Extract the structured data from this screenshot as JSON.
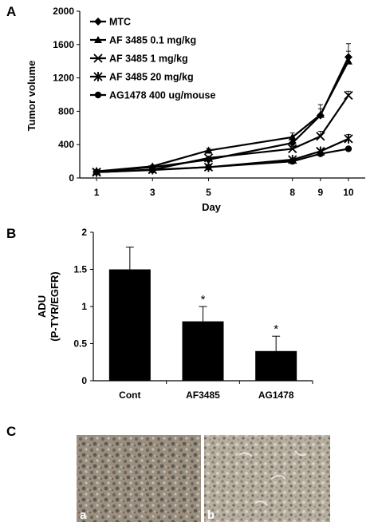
{
  "panels": {
    "a": {
      "letter": "A"
    },
    "b": {
      "letter": "B"
    },
    "c": {
      "letter": "C",
      "image_labels": [
        "a",
        "b"
      ]
    }
  },
  "chart_data": [
    {
      "id": "A",
      "type": "line",
      "xlabel": "Day",
      "ylabel": "Tumor volume",
      "x": [
        1,
        3,
        5,
        8,
        9,
        10
      ],
      "xlim": [
        0.4,
        10.6
      ],
      "ylim": [
        0,
        2000
      ],
      "yticks": [
        0,
        400,
        800,
        1200,
        1600,
        2000
      ],
      "legend_position": "top-left",
      "grid": false,
      "series": [
        {
          "name": "MTC",
          "marker": "diamond",
          "values": [
            75,
            130,
            220,
            420,
            750,
            1450
          ],
          "errors": [
            10,
            15,
            25,
            40,
            130,
            160
          ]
        },
        {
          "name": "AF 3485 0.1 mg/kg",
          "marker": "triangle",
          "values": [
            80,
            140,
            330,
            490,
            760,
            1400
          ],
          "errors": [
            10,
            15,
            25,
            50,
            70,
            120
          ]
        },
        {
          "name": "AF 3485 1 mg/kg",
          "marker": "x",
          "values": [
            70,
            100,
            240,
            350,
            500,
            990
          ],
          "errors": [
            10,
            10,
            20,
            30,
            60,
            50
          ]
        },
        {
          "name": "AF 3485 20 mg/kg",
          "marker": "star",
          "values": [
            70,
            100,
            130,
            220,
            320,
            470
          ],
          "errors": [
            10,
            10,
            15,
            20,
            20,
            50
          ]
        },
        {
          "name": "AG1478 400 ug/mouse",
          "marker": "circle",
          "values": [
            70,
            95,
            130,
            200,
            290,
            350
          ],
          "errors": [
            10,
            10,
            10,
            15,
            15,
            20
          ]
        }
      ]
    },
    {
      "id": "B",
      "type": "bar",
      "ylabel_line1": "ADU",
      "ylabel_line2": "(P-TYR/EGFR)",
      "categories": [
        "Cont",
        "AF3485",
        "AG1478"
      ],
      "values": [
        1.5,
        0.8,
        0.4
      ],
      "errors": [
        0.3,
        0.2,
        0.2
      ],
      "significance": [
        "",
        "*",
        "*"
      ],
      "ylim": [
        0,
        2
      ],
      "yticks": [
        0,
        0.5,
        1,
        1.5,
        2
      ],
      "grid": false
    }
  ]
}
